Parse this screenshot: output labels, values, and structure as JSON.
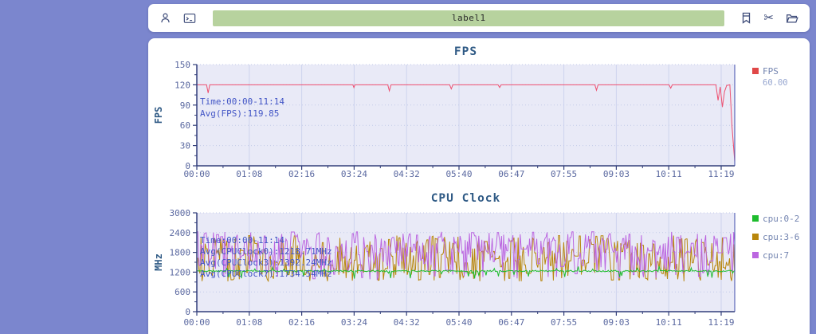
{
  "toolbar": {
    "label_value": "label1",
    "icons_left": [
      "user-icon",
      "terminal-icon"
    ],
    "icons_right": [
      "bookmark-icon",
      "cut-icon",
      "folder-open-icon"
    ],
    "cut_glyph": "✂"
  },
  "colors": {
    "page_background": "#7b86ce",
    "card": "#ffffff",
    "label_field_green": "#b7d29e",
    "plot_background": "#e9eaf7",
    "axis": "#323e7a",
    "grid_vertical": "#cdd3ee",
    "grid_horizontal": "#c3cbe9",
    "tick_text": "#5a68a0",
    "title_text": "#2f5a85",
    "annotation_text": "#4356c6",
    "legend_text": "#7384b0",
    "legend_value_text": "#98a7d0",
    "fps_line": "#ee5070",
    "fps_legend_swatch": "#e04848",
    "cpu0_green": "#1ebc2d",
    "cpu3_olive": "#b8860b",
    "cpu7_purple": "#bb66e0"
  },
  "chart_data": [
    {
      "id": "fps",
      "type": "line",
      "title": "FPS",
      "ylabel": "FPS",
      "xlabel": "",
      "ylim": [
        0,
        150
      ],
      "yticks": [
        0,
        30,
        60,
        90,
        120,
        150
      ],
      "xticks": [
        "00:00",
        "01:08",
        "02:16",
        "03:24",
        "04:32",
        "05:40",
        "06:47",
        "07:55",
        "09:03",
        "10:11",
        "11:19"
      ],
      "grid": true,
      "legend_position": "right",
      "annotations": [
        "Time:00:00-11:14",
        "Avg(FPS):119.85"
      ],
      "legend": [
        {
          "label": "FPS",
          "value": "60.00",
          "color": "#e04848"
        }
      ],
      "series": [
        {
          "name": "FPS",
          "color": "#ee5070",
          "gen": {
            "kind": "anchors",
            "anchors": [
              [
                0,
                120
              ],
              [
                0.018,
                120
              ],
              [
                0.021,
                108
              ],
              [
                0.024,
                120
              ],
              [
                0.29,
                120
              ],
              [
                0.292,
                116
              ],
              [
                0.294,
                120
              ],
              [
                0.355,
                120
              ],
              [
                0.358,
                111
              ],
              [
                0.361,
                120
              ],
              [
                0.47,
                120
              ],
              [
                0.473,
                114
              ],
              [
                0.476,
                120
              ],
              [
                0.56,
                120
              ],
              [
                0.563,
                116
              ],
              [
                0.566,
                120
              ],
              [
                0.74,
                120
              ],
              [
                0.743,
                112
              ],
              [
                0.746,
                120
              ],
              [
                0.878,
                120
              ],
              [
                0.881,
                115
              ],
              [
                0.884,
                120
              ],
              [
                0.965,
                120
              ],
              [
                0.969,
                97
              ],
              [
                0.973,
                117
              ],
              [
                0.977,
                87
              ],
              [
                0.981,
                110
              ],
              [
                0.985,
                119
              ],
              [
                0.991,
                120
              ],
              [
                0.995,
                58
              ],
              [
                1,
                6
              ]
            ]
          }
        }
      ]
    },
    {
      "id": "cpu",
      "type": "line",
      "title": "CPU Clock",
      "ylabel": "MHz",
      "xlabel": "",
      "ylim": [
        0,
        3000
      ],
      "yticks": [
        0,
        600,
        1200,
        1800,
        2400,
        3000
      ],
      "xticks": [
        "00:00",
        "01:08",
        "02:16",
        "03:24",
        "04:32",
        "05:40",
        "06:47",
        "07:55",
        "09:03",
        "10:11",
        "11:19"
      ],
      "grid": true,
      "legend_position": "right",
      "annotations": [
        "Time:00:00-11:14",
        "Avg(CPUClock0):1218.71MHz",
        "Avg(CPUClock3):1392.24MHz",
        "Avg(CPUClock7):1734.54MHz"
      ],
      "legend": [
        {
          "label": "cpu:0-2",
          "color": "#1ebc2d"
        },
        {
          "label": "cpu:3-6",
          "color": "#b8860b"
        },
        {
          "label": "cpu:7",
          "color": "#bb66e0"
        }
      ],
      "series": [
        {
          "name": "cpu:3-6",
          "color": "#b8860b",
          "gen": {
            "kind": "noise",
            "seed": 23,
            "n": 520,
            "min": 920,
            "max": 2320,
            "bias": 1.15,
            "keep": 0.25
          }
        },
        {
          "name": "cpu:7",
          "color": "#bb66e0",
          "gen": {
            "kind": "noise",
            "seed": 37,
            "n": 520,
            "min": 950,
            "max": 2430,
            "bias": 0.7,
            "keep": 0.25
          }
        },
        {
          "name": "cpu:0-2",
          "color": "#1ebc2d",
          "gen": {
            "kind": "flat",
            "seed": 11,
            "n": 520,
            "base": 1235,
            "jitter": 22,
            "spike_prob": 0.05,
            "spike_amp": 180
          }
        }
      ]
    }
  ]
}
